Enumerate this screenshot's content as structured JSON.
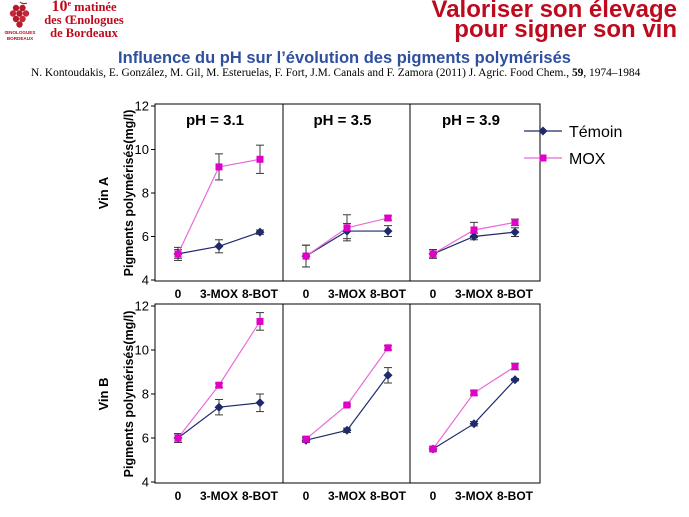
{
  "header": {
    "emblem_line1": "ŒNOLOGUES",
    "emblem_line2": "BORDEAUX",
    "event_number": "10",
    "event_ordinal": "e",
    "event_word": " matinée",
    "event_line2": "des Œnologues",
    "event_line3": "de Bordeaux",
    "tagline_line1": "Valoriser son élevage",
    "tagline_line2": "pour signer son vin",
    "brand_color": "#BE0A1E"
  },
  "slide": {
    "title": "Influence du pH sur l’évolution des pigments polymérisés",
    "title_color": "#2F4F9F",
    "citation_text": "N. Kontoudakis, E. González, M. Gil, M. Esteruelas, F. Fort, J.M. Canals and F. Zamora (2011) J. Agric. Food Chem., ",
    "citation_volume": "59",
    "citation_pages": ", 1974–1984"
  },
  "chart_data": {
    "type": "line",
    "rows": [
      "Vin A",
      "Vin B"
    ],
    "columns": [
      "pH = 3.1",
      "pH = 3.5",
      "pH = 3.9"
    ],
    "categories": [
      "0",
      "3-MOX",
      "8-BOT"
    ],
    "ylabel": "Pigments polymérisés(mg/l)",
    "ylim": [
      4,
      12
    ],
    "yticks": [
      4,
      6,
      8,
      10,
      12
    ],
    "grid": false,
    "legend_position": "top-right",
    "legend": [
      {
        "name": "Témoin",
        "color": "#1F2A6C",
        "line_color": "#1F2A6C",
        "marker": "diamond"
      },
      {
        "name": "MOX",
        "color": "#E000C8",
        "line_color": "#E86AD8",
        "marker": "square"
      }
    ],
    "panels": [
      {
        "row": 0,
        "col": 0,
        "series": [
          {
            "values": [
              5.2,
              5.55,
              6.2
            ],
            "errors": [
              0.2,
              0.3,
              0.1
            ]
          },
          {
            "values": [
              5.2,
              9.2,
              9.55
            ],
            "errors": [
              0.3,
              0.6,
              0.65
            ]
          }
        ]
      },
      {
        "row": 0,
        "col": 1,
        "series": [
          {
            "values": [
              5.1,
              6.25,
              6.25
            ],
            "errors": [
              0.5,
              0.35,
              0.25
            ]
          },
          {
            "values": [
              5.1,
              6.4,
              6.85
            ],
            "errors": [
              0.5,
              0.6,
              0.1
            ]
          }
        ]
      },
      {
        "row": 0,
        "col": 2,
        "series": [
          {
            "values": [
              5.2,
              6.0,
              6.2
            ],
            "errors": [
              0.2,
              0.15,
              0.2
            ]
          },
          {
            "values": [
              5.2,
              6.3,
              6.65
            ],
            "errors": [
              0.2,
              0.35,
              0.15
            ]
          }
        ]
      },
      {
        "row": 1,
        "col": 0,
        "series": [
          {
            "values": [
              6.0,
              7.4,
              7.6
            ],
            "errors": [
              0.2,
              0.35,
              0.4
            ]
          },
          {
            "values": [
              6.0,
              8.4,
              11.3
            ],
            "errors": [
              0.2,
              0.1,
              0.4
            ]
          }
        ]
      },
      {
        "row": 1,
        "col": 1,
        "series": [
          {
            "values": [
              5.9,
              6.35,
              8.85
            ],
            "errors": [
              0.1,
              0.1,
              0.35
            ]
          },
          {
            "values": [
              5.95,
              7.5,
              10.1
            ],
            "errors": [
              0.1,
              0.05,
              0.1
            ]
          }
        ]
      },
      {
        "row": 1,
        "col": 2,
        "series": [
          {
            "values": [
              5.5,
              6.65,
              8.65
            ],
            "errors": [
              0.1,
              0.1,
              0.05
            ]
          },
          {
            "values": [
              5.5,
              8.05,
              9.25
            ],
            "errors": [
              0.1,
              0.1,
              0.15
            ]
          }
        ]
      }
    ]
  }
}
